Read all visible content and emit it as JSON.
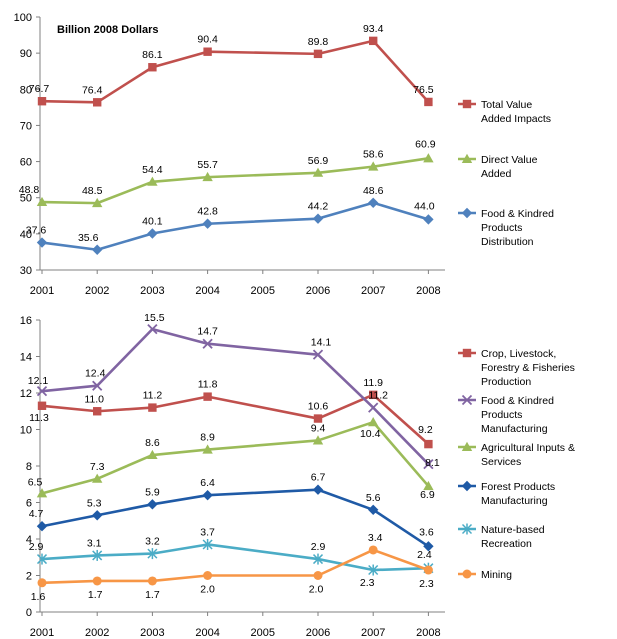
{
  "chart_data": [
    {
      "type": "line",
      "note": "Billion 2008 Dollars",
      "x": [
        "2001",
        "2002",
        "2003",
        "2004",
        "2005",
        "2006",
        "2007",
        "2008"
      ],
      "xticks": [
        "2001",
        "2002",
        "2003",
        "2004",
        "2005",
        "2006",
        "2007",
        "2008"
      ],
      "ylim": [
        30,
        100
      ],
      "yticks": [
        "30",
        "40",
        "50",
        "60",
        "70",
        "80",
        "90",
        "100"
      ],
      "grid": false,
      "legend_position": "right",
      "series": [
        {
          "name": "Total Value Added Impacts",
          "legend_lines": [
            "Total Value",
            "Added Impacts"
          ],
          "marker": "square",
          "color": "#c0504d",
          "x": [
            "2001",
            "2002",
            "2003",
            "2004",
            "2006",
            "2007",
            "2008"
          ],
          "values": [
            76.7,
            76.4,
            86.1,
            90.4,
            89.8,
            93.4,
            76.5
          ],
          "labels": [
            "76.7",
            "76.4",
            "86.1",
            "90.4",
            "89.8",
            "93.4",
            "76.5"
          ]
        },
        {
          "name": "Direct Value Added",
          "legend_lines": [
            "Direct Value",
            "Added"
          ],
          "marker": "triangle",
          "color": "#9bbb59",
          "x": [
            "2001",
            "2002",
            "2003",
            "2004",
            "2006",
            "2007",
            "2008"
          ],
          "values": [
            48.8,
            48.5,
            54.4,
            55.7,
            56.9,
            58.6,
            60.9
          ],
          "labels": [
            "48.8",
            "48.5",
            "54.4",
            "55.7",
            "56.9",
            "58.6",
            "60.9"
          ]
        },
        {
          "name": "Food & Kindred Products Distribution",
          "legend_lines": [
            "Food & Kindred",
            "Products",
            "Distribution"
          ],
          "marker": "diamond",
          "color": "#4f81bd",
          "x": [
            "2001",
            "2002",
            "2003",
            "2004",
            "2006",
            "2007",
            "2008"
          ],
          "values": [
            37.6,
            35.6,
            40.1,
            42.8,
            44.2,
            48.6,
            44.0
          ],
          "labels": [
            "37.6",
            "35.6",
            "40.1",
            "42.8",
            "44.2",
            "48.6",
            "44.0"
          ]
        }
      ]
    },
    {
      "type": "line",
      "x": [
        "2001",
        "2002",
        "2003",
        "2004",
        "2005",
        "2006",
        "2007",
        "2008"
      ],
      "xticks": [
        "2001",
        "2002",
        "2003",
        "2004",
        "2005",
        "2006",
        "2007",
        "2008"
      ],
      "ylim": [
        0,
        16
      ],
      "yticks": [
        "0",
        "2",
        "4",
        "6",
        "8",
        "10",
        "12",
        "14",
        "16"
      ],
      "grid": false,
      "legend_position": "right",
      "series": [
        {
          "name": "Crop, Livestock, Forestry & Fisheries Production",
          "legend_lines": [
            "Crop, Livestock,",
            "Forestry & Fisheries",
            "Production"
          ],
          "marker": "square",
          "color": "#c0504d",
          "x": [
            "2001",
            "2002",
            "2003",
            "2004",
            "2006",
            "2007",
            "2008"
          ],
          "values": [
            11.3,
            11.0,
            11.2,
            11.8,
            10.6,
            11.9,
            9.2
          ],
          "labels": [
            "11.3",
            "11.0",
            "11.2",
            "11.8",
            "10.6",
            "11.9",
            "9.2"
          ]
        },
        {
          "name": "Food & Kindred Products Manufacturing",
          "legend_lines": [
            "Food & Kindred",
            "Products",
            "Manufacturing"
          ],
          "marker": "x",
          "color": "#8064a2",
          "x": [
            "2001",
            "2002",
            "2003",
            "2004",
            "2006",
            "2007",
            "2008"
          ],
          "values": [
            12.1,
            12.4,
            15.5,
            14.7,
            14.1,
            11.2,
            8.1
          ],
          "labels": [
            "12.1",
            "12.4",
            "15.5",
            "14.7",
            "14.1",
            "11.2",
            "8.1"
          ]
        },
        {
          "name": "Agricultural Inputs & Services",
          "legend_lines": [
            "Agricultural Inputs &",
            "Services"
          ],
          "marker": "triangle",
          "color": "#9bbb59",
          "x": [
            "2001",
            "2002",
            "2003",
            "2004",
            "2006",
            "2007",
            "2008"
          ],
          "values": [
            6.5,
            7.3,
            8.6,
            8.9,
            9.4,
            10.4,
            6.9
          ],
          "labels": [
            "6.5",
            "7.3",
            "8.6",
            "8.9",
            "9.4",
            "10.4",
            "6.9"
          ]
        },
        {
          "name": "Forest Products Manufacturing",
          "legend_lines": [
            "Forest Products",
            "Manufacturing"
          ],
          "marker": "diamond",
          "color": "#1f5aa6",
          "x": [
            "2001",
            "2002",
            "2003",
            "2004",
            "2006",
            "2007",
            "2008"
          ],
          "values": [
            4.7,
            5.3,
            5.9,
            6.4,
            6.7,
            5.6,
            3.6
          ],
          "labels": [
            "4.7",
            "5.3",
            "5.9",
            "6.4",
            "6.7",
            "5.6",
            "3.6"
          ]
        },
        {
          "name": "Nature-based Recreation",
          "legend_lines": [
            "Nature-based",
            "Recreation"
          ],
          "marker": "star",
          "color": "#4bacc6",
          "x": [
            "2001",
            "2002",
            "2003",
            "2004",
            "2006",
            "2007",
            "2008"
          ],
          "values": [
            2.9,
            3.1,
            3.2,
            3.7,
            2.9,
            2.3,
            2.4
          ],
          "labels": [
            "2.9",
            "3.1",
            "3.2",
            "3.7",
            "2.9",
            "2.3",
            "2.4"
          ]
        },
        {
          "name": "Mining",
          "legend_lines": [
            "Mining"
          ],
          "marker": "circle",
          "color": "#f79646",
          "x": [
            "2001",
            "2002",
            "2003",
            "2004",
            "2006",
            "2007",
            "2008"
          ],
          "values": [
            1.6,
            1.7,
            1.7,
            2.0,
            2.0,
            3.4,
            2.3
          ],
          "labels": [
            "1.6",
            "1.7",
            "1.7",
            "2.0",
            "2.0",
            "3.4",
            "2.3"
          ]
        }
      ]
    }
  ]
}
